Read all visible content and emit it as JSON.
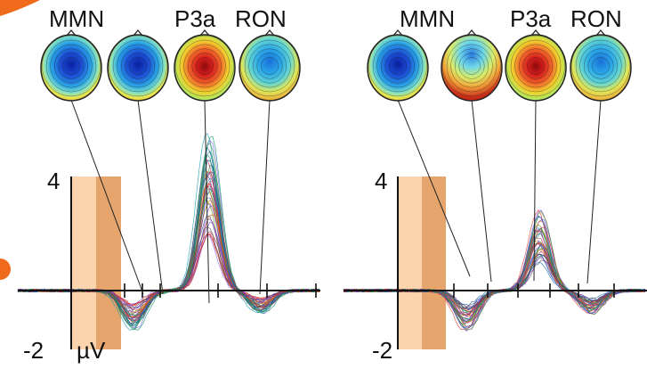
{
  "panels": [
    {
      "components": [
        "MMN",
        "P3a",
        "RON"
      ],
      "y_max_label": "4",
      "y_min_label": "-2",
      "unit_label": "µV",
      "topomaps": [
        "blue",
        "blue",
        "red",
        "blue-light"
      ]
    },
    {
      "components": [
        "MMN",
        "P3a",
        "RON"
      ],
      "y_max_label": "4",
      "y_min_label": "-2",
      "topomaps": [
        "blue",
        "mixed",
        "red",
        "blue-light"
      ]
    }
  ]
}
